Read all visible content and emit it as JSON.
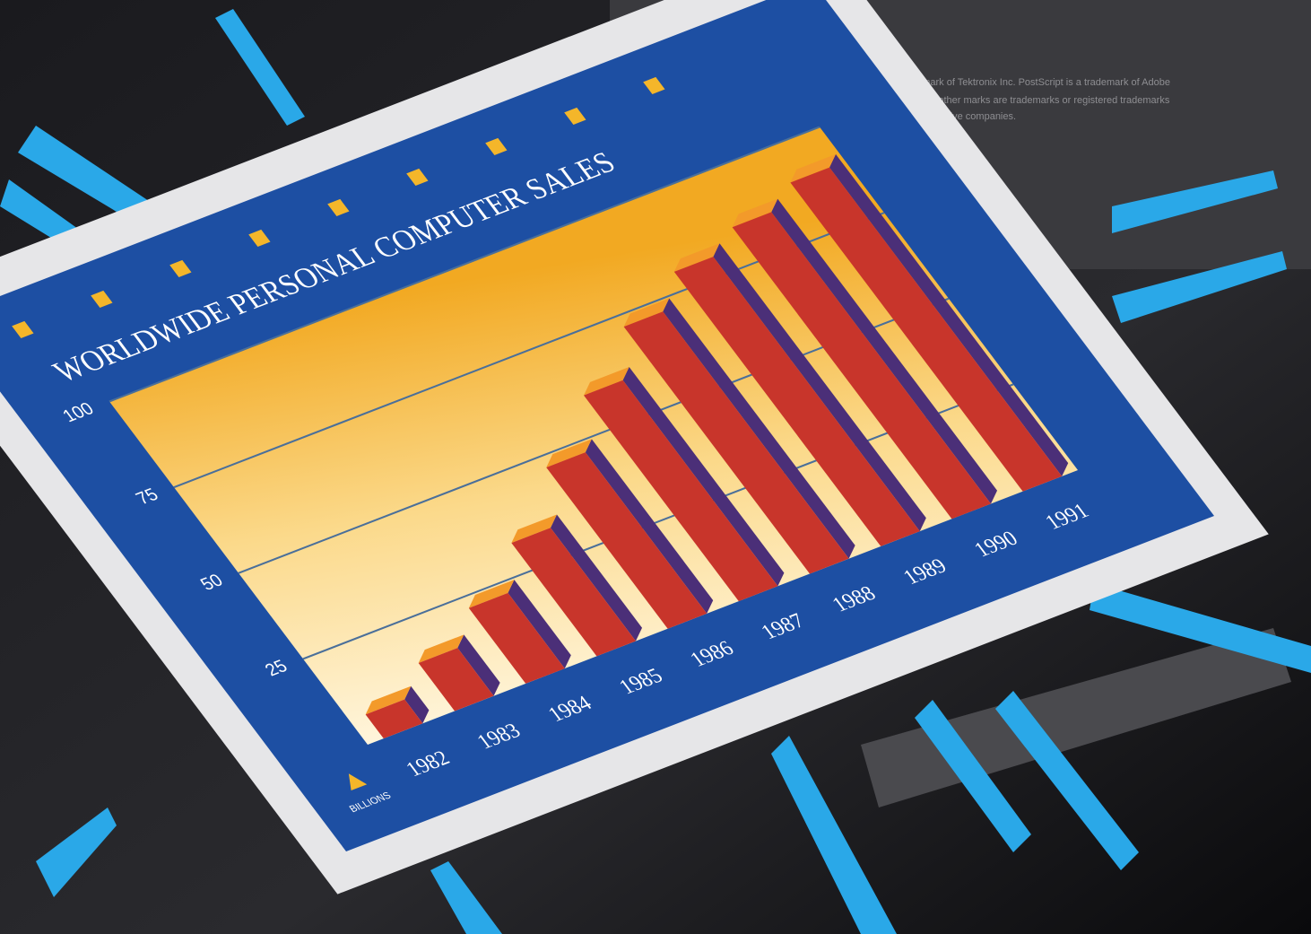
{
  "chart_data": {
    "type": "bar",
    "title": "WORLDWIDE PERSONAL COMPUTER SALES",
    "ylabel": "BILLIONS",
    "categories": [
      "1982",
      "1983",
      "1984",
      "1985",
      "1986",
      "1987",
      "1988",
      "1989",
      "1990",
      "1991"
    ],
    "values": [
      7,
      14,
      22,
      33,
      47,
      60,
      72,
      80,
      85,
      90
    ],
    "color": "#c8352b",
    "ylim": [
      0,
      100
    ],
    "yticks": [
      25,
      50,
      75,
      100
    ],
    "grid": true
  },
  "caption": {
    "lines": [
      "Phaser is a trademark of Tektronix Inc. PostScript is a trademark of Adobe",
      "Systems Inc. All other marks are trademarks or registered trademarks",
      "of their respective companies."
    ]
  }
}
